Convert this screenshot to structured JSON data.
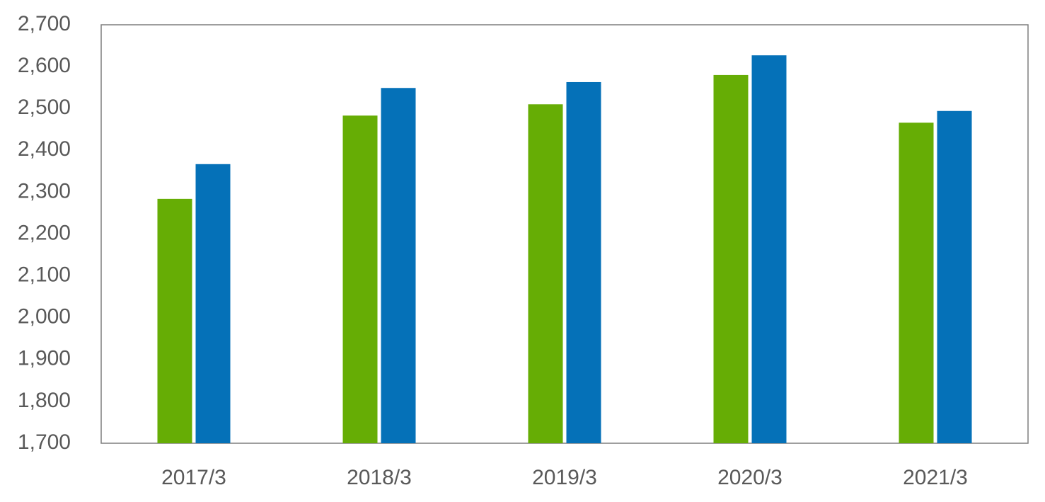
{
  "chart_data": {
    "type": "bar",
    "categories": [
      "2017/3",
      "2018/3",
      "2019/3",
      "2020/3",
      "2021/3"
    ],
    "series": [
      {
        "color": "#66ad05",
        "values": [
          2284,
          2483,
          2510,
          2580,
          2466
        ]
      },
      {
        "color": "#0571b8",
        "values": [
          2367,
          2549,
          2563,
          2627,
          2494
        ]
      }
    ],
    "ylim": [
      1700,
      2700
    ],
    "yticks": [
      {
        "value": 1700,
        "label": "1,700"
      },
      {
        "value": 1800,
        "label": "1,800"
      },
      {
        "value": 1900,
        "label": "1,900"
      },
      {
        "value": 2000,
        "label": "2,000"
      },
      {
        "value": 2100,
        "label": "2,100"
      },
      {
        "value": 2200,
        "label": "2,200"
      },
      {
        "value": 2300,
        "label": "2,300"
      },
      {
        "value": 2400,
        "label": "2,400"
      },
      {
        "value": 2500,
        "label": "2,500"
      },
      {
        "value": 2600,
        "label": "2,600"
      },
      {
        "value": 2700,
        "label": "2,700"
      }
    ],
    "grid": false
  }
}
